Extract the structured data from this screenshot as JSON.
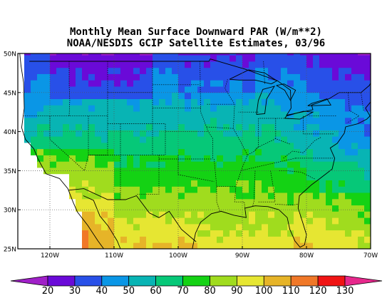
{
  "title": {
    "line1": "Monthly Mean Surface Downward PAR (W/m**2)",
    "line2": "NOAA/NESDIS GCIP Satellite Estimates, 03/96"
  },
  "map": {
    "lat_labels": [
      "50N",
      "45N",
      "40N",
      "35N",
      "30N",
      "25N"
    ],
    "lon_labels": [
      "120W",
      "110W",
      "100W",
      "90W",
      "80W",
      "70W"
    ],
    "lat_range": [
      25,
      50
    ],
    "lon_range": [
      -125,
      -70
    ]
  },
  "colorbar": {
    "tick_labels": [
      "20",
      "30",
      "40",
      "50",
      "60",
      "70",
      "80",
      "90",
      "100",
      "110",
      "120",
      "130"
    ],
    "colors": [
      "#a020c8",
      "#6a0ad8",
      "#2850e8",
      "#0a96e6",
      "#08b4b4",
      "#06c878",
      "#14d214",
      "#a0dc1e",
      "#e6e632",
      "#e6b428",
      "#f07828",
      "#f01414",
      "#e6288c"
    ]
  }
}
